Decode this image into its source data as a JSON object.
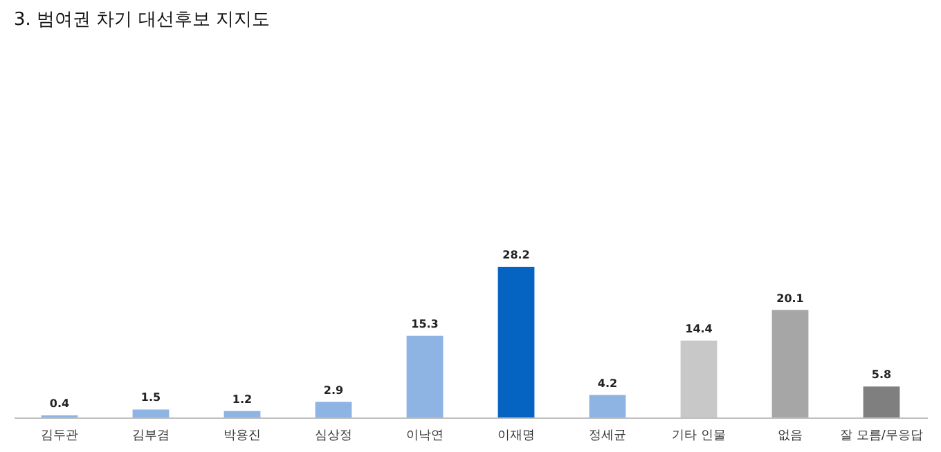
{
  "chart_data": {
    "type": "bar",
    "title": "3. 범여권 차기 대선후보 지지도",
    "categories": [
      "김두관",
      "김부겸",
      "박용진",
      "심상정",
      "이낙연",
      "이재명",
      "정세균",
      "기타 인물",
      "없음",
      "잘 모름/무응답"
    ],
    "values": [
      0.4,
      1.5,
      1.2,
      2.9,
      15.3,
      28.2,
      4.2,
      14.4,
      20.1,
      5.8
    ],
    "colors": [
      "#8db4e2",
      "#8db4e2",
      "#8db4e2",
      "#8db4e2",
      "#8db4e2",
      "#0563c1",
      "#8db4e2",
      "#c8c8c8",
      "#a6a6a6",
      "#7f7f7f"
    ],
    "data_labels": true
  }
}
